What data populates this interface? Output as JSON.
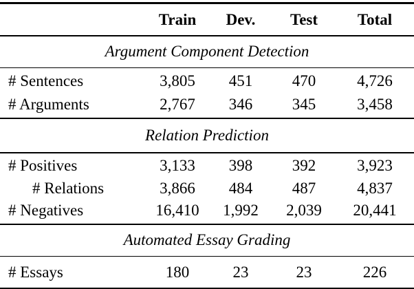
{
  "table": {
    "columns": [
      "",
      "Train",
      "Dev.",
      "Test",
      "Total"
    ],
    "sections": [
      {
        "title": "Argument Component Detection",
        "rows": [
          {
            "label": "# Sentences",
            "indent": false,
            "values": [
              "3,805",
              "451",
              "470",
              "4,726"
            ]
          },
          {
            "label": "# Arguments",
            "indent": false,
            "values": [
              "2,767",
              "346",
              "345",
              "3,458"
            ]
          }
        ]
      },
      {
        "title": "Relation Prediction",
        "rows": [
          {
            "label": "# Positives",
            "indent": false,
            "values": [
              "3,133",
              "398",
              "392",
              "3,923"
            ]
          },
          {
            "label": "# Relations",
            "indent": true,
            "values": [
              "3,866",
              "484",
              "487",
              "4,837"
            ]
          },
          {
            "label": "# Negatives",
            "indent": false,
            "values": [
              "16,410",
              "1,992",
              "2,039",
              "20,441"
            ]
          }
        ]
      },
      {
        "title": "Automated Essay Grading",
        "rows": [
          {
            "label": "# Essays",
            "indent": false,
            "values": [
              "180",
              "23",
              "23",
              "226"
            ]
          }
        ]
      }
    ],
    "colors": {
      "text": "#000000",
      "background": "#ffffff",
      "rule": "#000000"
    }
  }
}
